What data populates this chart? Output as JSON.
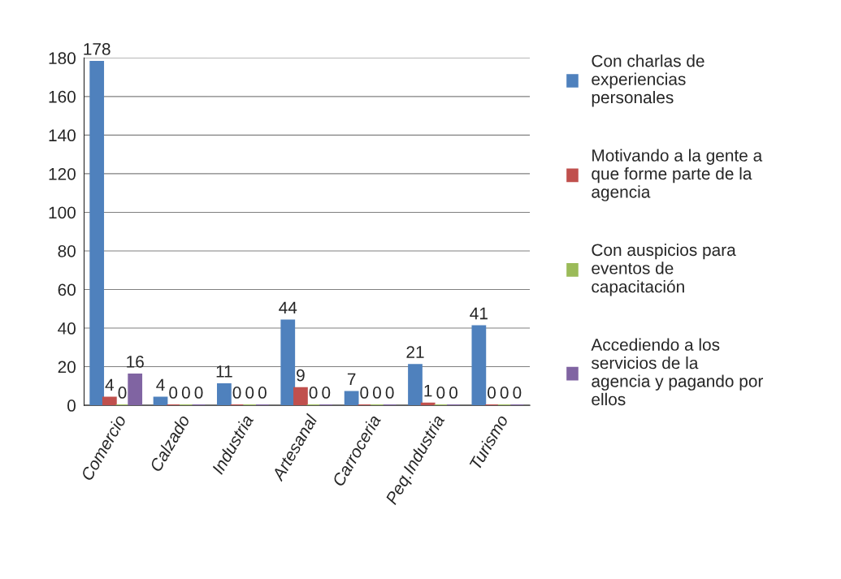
{
  "chart_data": {
    "type": "bar",
    "categories": [
      "Comercio",
      "Calzado",
      "Industria",
      "Artesanal",
      "Carroceria",
      "Peq.Industria",
      "Turismo"
    ],
    "series": [
      {
        "name": "Con charlas de experiencias personales",
        "color": "#4f81bd",
        "values": [
          178,
          4,
          11,
          44,
          7,
          21,
          41
        ]
      },
      {
        "name": "Motivando a la gente a que forme parte de la agencia",
        "color": "#c0504d",
        "values": [
          4,
          0,
          0,
          9,
          0,
          1,
          0
        ]
      },
      {
        "name": "Con auspicios para eventos de capacitación",
        "color": "#9bbb59",
        "values": [
          0,
          0,
          0,
          0,
          0,
          0,
          0
        ]
      },
      {
        "name": "Accediendo a los servicios de la agencia y pagando por ellos",
        "color": "#8064a2",
        "values": [
          16,
          0,
          0,
          0,
          0,
          0,
          0
        ]
      }
    ],
    "ylim": [
      0,
      180
    ],
    "yticks": [
      0,
      20,
      40,
      60,
      80,
      100,
      120,
      140,
      160,
      180
    ],
    "grid": "y",
    "legend": "right",
    "data_labels": true
  }
}
